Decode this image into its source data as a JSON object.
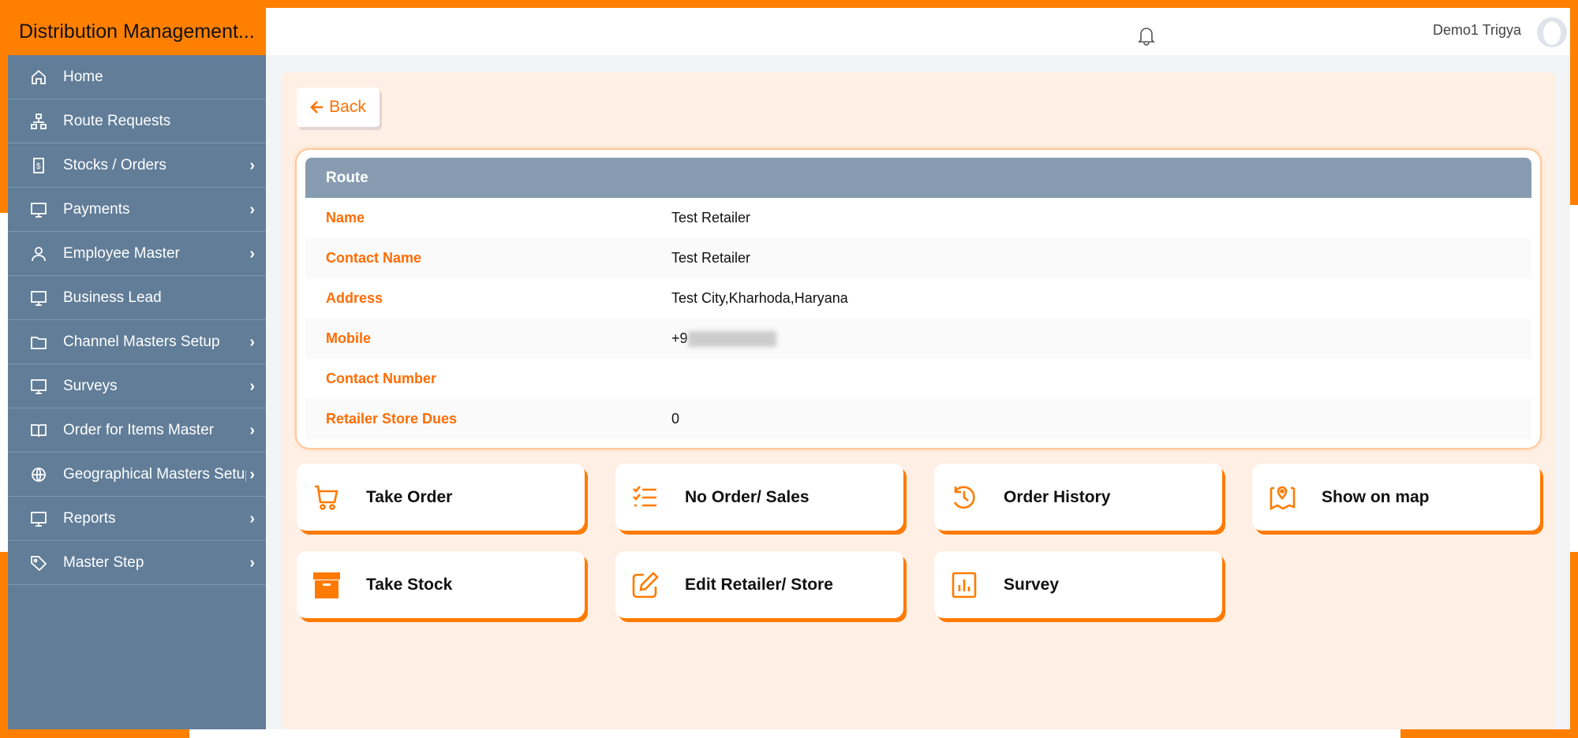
{
  "brand": {
    "title": "Distribution Management...",
    "accent": "#ff8000"
  },
  "header": {
    "user_name": "Demo1 Trigya",
    "notification_icon": "bell-icon",
    "avatar_icon": "user-avatar"
  },
  "sidebar": {
    "items": [
      {
        "label": "Home",
        "icon": "home-icon",
        "has_children": false
      },
      {
        "label": "Route Requests",
        "icon": "sitemap-icon",
        "has_children": false
      },
      {
        "label": "Stocks / Orders",
        "icon": "receipt-icon",
        "has_children": true
      },
      {
        "label": "Payments",
        "icon": "monitor-icon",
        "has_children": true
      },
      {
        "label": "Employee Master",
        "icon": "employee-icon",
        "has_children": true
      },
      {
        "label": "Business Lead",
        "icon": "monitor-icon",
        "has_children": false
      },
      {
        "label": "Channel Masters Setup",
        "icon": "folder-icon",
        "has_children": true
      },
      {
        "label": "Surveys",
        "icon": "monitor-icon",
        "has_children": true
      },
      {
        "label": "Order for Items Master",
        "icon": "book-icon",
        "has_children": true
      },
      {
        "label": "Geographical Masters Setup",
        "icon": "globe-icon",
        "has_children": true
      },
      {
        "label": "Reports",
        "icon": "monitor-icon",
        "has_children": true
      },
      {
        "label": "Master Step",
        "icon": "tag-icon",
        "has_children": true
      }
    ]
  },
  "main": {
    "back_label": "Back",
    "card": {
      "title": "Route",
      "rows": [
        {
          "label": "Name",
          "value": "Test Retailer"
        },
        {
          "label": "Contact Name",
          "value": "Test Retailer"
        },
        {
          "label": "Address",
          "value": "Test City,Kharhoda,Haryana"
        },
        {
          "label": "Mobile",
          "value": "+9"
        },
        {
          "label": "Contact Number",
          "value": ""
        },
        {
          "label": "Retailer Store Dues",
          "value": "0"
        }
      ]
    },
    "actions": [
      {
        "label": "Take Order",
        "icon": "cart-icon"
      },
      {
        "label": "No Order/ Sales",
        "icon": "checklist-icon"
      },
      {
        "label": "Order History",
        "icon": "history-icon"
      },
      {
        "label": "Show on map",
        "icon": "map-icon"
      },
      {
        "label": "Take Stock",
        "icon": "archive-box-icon"
      },
      {
        "label": "Edit Retailer/ Store",
        "icon": "edit-icon"
      },
      {
        "label": "Survey",
        "icon": "bar-chart-icon"
      }
    ]
  }
}
